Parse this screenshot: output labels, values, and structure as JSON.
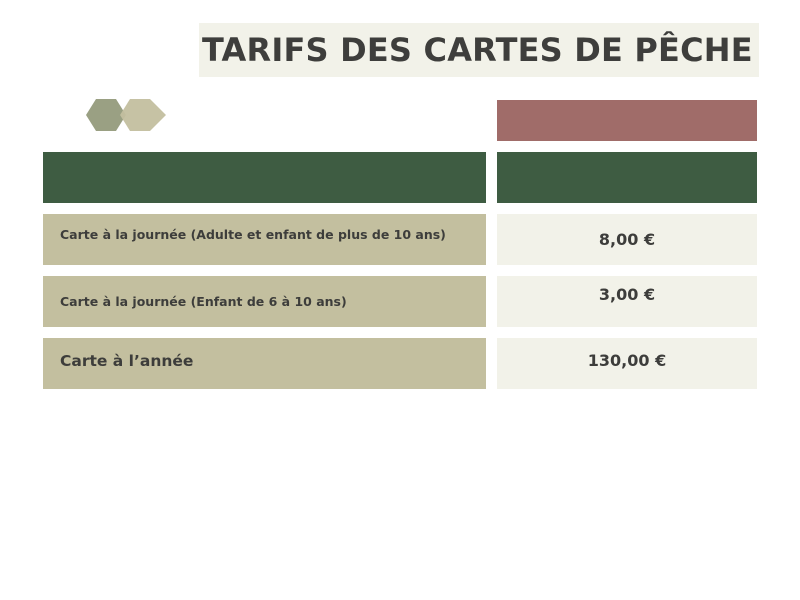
{
  "title": "TARIFS DES CARTES DE PÊCHE",
  "decoration": {
    "hexagon_colors": [
      "#9aa083",
      "#c3bf9f"
    ],
    "accent_bar_color": "#a06c69",
    "header_bar_color": "#3e5c42"
  },
  "tariffs": [
    {
      "label": "Carte à la journée (Adulte et enfant de plus de 10 ans)",
      "price": "8,00 €"
    },
    {
      "label": "Carte à la journée (Enfant de 6 à 10 ans)",
      "price": "3,00 €"
    },
    {
      "label": "Carte à l’année",
      "price": "130,00 €"
    }
  ]
}
